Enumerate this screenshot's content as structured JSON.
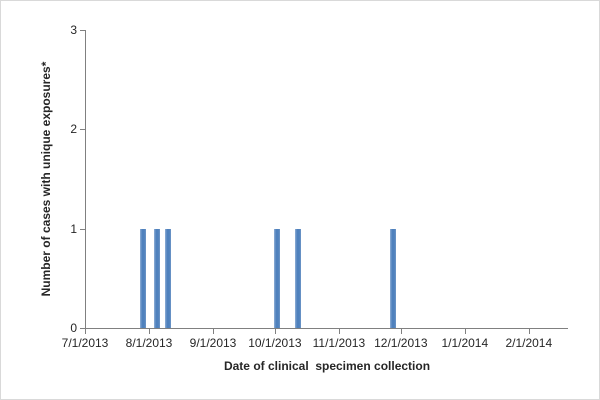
{
  "window": {
    "background": "#ffffff",
    "frame_color": "#d9d9d9"
  },
  "chart_data": {
    "type": "bar",
    "title": "",
    "xlabel": "Date of clinical  specimen collection",
    "ylabel": "Number of cases with unique exposures*",
    "x_tick_labels": [
      "7/1/2013",
      "8/1/2013",
      "9/1/2013",
      "10/1/2013",
      "11/1/2013",
      "12/1/2013",
      "1/1/2014",
      "2/1/2014"
    ],
    "y_tick_labels": [
      "0",
      "1",
      "2",
      "3"
    ],
    "xlim": [
      "7/1/2013",
      "2/20/2014"
    ],
    "ylim": [
      0,
      3
    ],
    "grid": false,
    "legend": "none",
    "bars": [
      {
        "date": "7/29/2013",
        "value": 1
      },
      {
        "date": "8/5/2013",
        "value": 1
      },
      {
        "date": "8/10/2013",
        "value": 1
      },
      {
        "date": "10/2/2013",
        "value": 1
      },
      {
        "date": "10/12/2013",
        "value": 1
      },
      {
        "date": "11/27/2013",
        "value": 1
      }
    ],
    "colors": {
      "bar": "#4F81BD",
      "bar_edge_light": "#8FAFD6",
      "bar_edge_dark": "#6D96C6",
      "axis": "#808080",
      "text": "#262626"
    }
  }
}
